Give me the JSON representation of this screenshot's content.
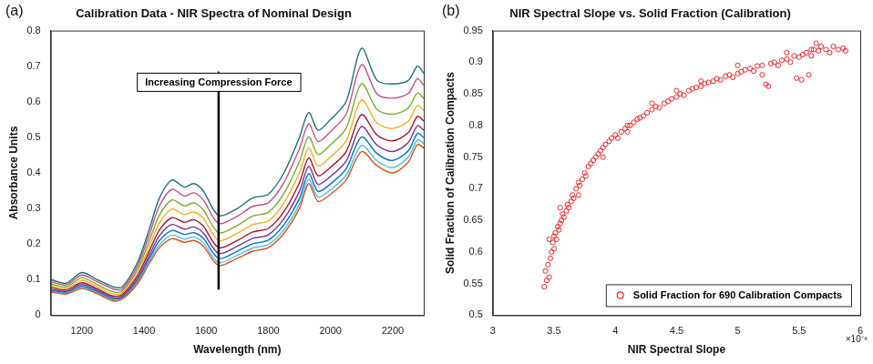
{
  "chart_data": [
    {
      "type": "line",
      "panel_label": "(a)",
      "title": "Calibration Data - NIR Spectra of Nominal Design",
      "x_label": "Wavelength (nm)",
      "y_label": "Absorbance Units",
      "annotations": [
        {
          "text": "Increasing Compression Force"
        }
      ],
      "xlim": [
        1100,
        2300
      ],
      "xticks": [
        1200,
        1400,
        1600,
        1800,
        2000,
        2200
      ],
      "ylim": [
        0,
        0.8
      ],
      "yticks": [
        0,
        0.1,
        0.2,
        0.3,
        0.4,
        0.5,
        0.6,
        0.7,
        0.8
      ],
      "grid": false,
      "line_style": "solid",
      "x": [
        1100,
        1150,
        1200,
        1250,
        1300,
        1330,
        1380,
        1420,
        1450,
        1490,
        1530,
        1560,
        1590,
        1640,
        1700,
        1750,
        1800,
        1850,
        1900,
        1930,
        1960,
        2000,
        2050,
        2100,
        2150,
        2200,
        2250,
        2280,
        2300
      ],
      "series": [
        {
          "color": "#d95319",
          "values": [
            0.065,
            0.06,
            0.075,
            0.06,
            0.04,
            0.045,
            0.09,
            0.15,
            0.19,
            0.215,
            0.205,
            0.21,
            0.195,
            0.14,
            0.16,
            0.18,
            0.19,
            0.23,
            0.3,
            0.37,
            0.32,
            0.34,
            0.38,
            0.46,
            0.42,
            0.4,
            0.43,
            0.48,
            0.47
          ]
        },
        {
          "color": "#4dbeee",
          "values": [
            0.067,
            0.062,
            0.078,
            0.062,
            0.042,
            0.047,
            0.094,
            0.156,
            0.198,
            0.225,
            0.214,
            0.22,
            0.204,
            0.148,
            0.168,
            0.189,
            0.199,
            0.24,
            0.312,
            0.382,
            0.332,
            0.353,
            0.393,
            0.477,
            0.434,
            0.415,
            0.444,
            0.493,
            0.483
          ]
        },
        {
          "color": "#0072bd",
          "values": [
            0.07,
            0.064,
            0.081,
            0.066,
            0.046,
            0.05,
            0.098,
            0.164,
            0.21,
            0.238,
            0.227,
            0.232,
            0.217,
            0.16,
            0.18,
            0.201,
            0.211,
            0.254,
            0.328,
            0.398,
            0.348,
            0.369,
            0.411,
            0.501,
            0.454,
            0.435,
            0.462,
            0.511,
            0.499
          ]
        },
        {
          "color": "#7e2f8e",
          "values": [
            0.073,
            0.067,
            0.086,
            0.07,
            0.05,
            0.053,
            0.104,
            0.174,
            0.224,
            0.255,
            0.242,
            0.248,
            0.232,
            0.174,
            0.194,
            0.216,
            0.226,
            0.271,
            0.348,
            0.418,
            0.368,
            0.39,
            0.433,
            0.53,
            0.478,
            0.46,
            0.485,
            0.533,
            0.52
          ]
        },
        {
          "color": "#a2142f",
          "values": [
            0.078,
            0.071,
            0.091,
            0.074,
            0.054,
            0.058,
            0.112,
            0.186,
            0.24,
            0.274,
            0.261,
            0.268,
            0.251,
            0.19,
            0.21,
            0.234,
            0.244,
            0.291,
            0.372,
            0.442,
            0.392,
            0.416,
            0.459,
            0.564,
            0.506,
            0.49,
            0.513,
            0.559,
            0.546
          ]
        },
        {
          "color": "#edb120",
          "values": [
            0.083,
            0.075,
            0.098,
            0.08,
            0.06,
            0.063,
            0.12,
            0.2,
            0.26,
            0.298,
            0.283,
            0.29,
            0.273,
            0.21,
            0.23,
            0.255,
            0.265,
            0.315,
            0.4,
            0.47,
            0.42,
            0.445,
            0.49,
            0.605,
            0.54,
            0.525,
            0.545,
            0.59,
            0.575
          ]
        },
        {
          "color": "#77ac30",
          "values": [
            0.088,
            0.08,
            0.105,
            0.086,
            0.066,
            0.068,
            0.13,
            0.216,
            0.282,
            0.324,
            0.307,
            0.316,
            0.297,
            0.232,
            0.252,
            0.279,
            0.289,
            0.342,
            0.432,
            0.502,
            0.452,
            0.479,
            0.525,
            0.651,
            0.578,
            0.565,
            0.582,
            0.625,
            0.609
          ]
        },
        {
          "color": "#c0508a",
          "values": [
            0.094,
            0.085,
            0.113,
            0.094,
            0.074,
            0.074,
            0.14,
            0.234,
            0.308,
            0.354,
            0.335,
            0.344,
            0.325,
            0.258,
            0.278,
            0.306,
            0.316,
            0.373,
            0.468,
            0.538,
            0.488,
            0.516,
            0.565,
            0.704,
            0.622,
            0.61,
            0.623,
            0.665,
            0.646
          ]
        },
        {
          "color": "#1f6f78",
          "values": [
            0.1,
            0.09,
            0.12,
            0.1,
            0.08,
            0.08,
            0.15,
            0.25,
            0.33,
            0.38,
            0.36,
            0.37,
            0.35,
            0.28,
            0.3,
            0.33,
            0.34,
            0.4,
            0.5,
            0.57,
            0.52,
            0.55,
            0.6,
            0.75,
            0.66,
            0.65,
            0.66,
            0.7,
            0.68
          ]
        }
      ]
    },
    {
      "type": "scatter",
      "panel_label": "(b)",
      "title": "NIR Spectral Slope vs. Solid Fraction (Calibration)",
      "x_label": "NIR Spectral Slope",
      "x_axis_multiplier": "×10⁻⁴",
      "y_label": "Solid Fraction of Calibration Compacts",
      "xlim": [
        3,
        6
      ],
      "xticks": [
        3,
        3.5,
        4,
        4.5,
        5,
        5.5,
        6
      ],
      "ylim": [
        0.5,
        0.95
      ],
      "yticks": [
        0.5,
        0.55,
        0.6,
        0.65,
        0.7,
        0.75,
        0.8,
        0.85,
        0.9,
        0.95
      ],
      "grid": false,
      "legend": "lower right",
      "series": [
        {
          "name": "Solid Fraction for 690 Calibration Compacts",
          "color": "#e8262a",
          "marker": "circle",
          "x": [
            3.42,
            3.44,
            3.43,
            3.45,
            3.46,
            3.47,
            3.48,
            3.49,
            3.5,
            3.5,
            3.51,
            3.52,
            3.53,
            3.54,
            3.55,
            3.56,
            3.57,
            3.58,
            3.6,
            3.61,
            3.62,
            3.64,
            3.65,
            3.66,
            3.68,
            3.7,
            3.71,
            3.73,
            3.75,
            3.76,
            3.78,
            3.8,
            3.82,
            3.84,
            3.86,
            3.88,
            3.9,
            3.92,
            3.95,
            3.97,
            4.0,
            4.02,
            4.05,
            4.08,
            4.1,
            4.12,
            4.15,
            4.18,
            4.2,
            4.23,
            4.26,
            4.3,
            4.33,
            4.36,
            4.4,
            4.43,
            4.46,
            4.5,
            4.53,
            4.56,
            4.6,
            4.63,
            4.66,
            4.7,
            4.73,
            4.76,
            4.8,
            4.83,
            4.86,
            4.9,
            4.93,
            4.96,
            5.0,
            5.03,
            5.06,
            5.1,
            5.13,
            5.16,
            5.2,
            5.23,
            5.25,
            5.27,
            5.3,
            5.33,
            5.36,
            5.4,
            5.43,
            5.46,
            5.48,
            5.5,
            5.52,
            5.53,
            5.56,
            5.58,
            5.6,
            5.62,
            5.64,
            5.66,
            5.68,
            5.72,
            5.75,
            5.78,
            5.82,
            5.86,
            5.88,
            3.46,
            3.55,
            3.7,
            3.9,
            4.1,
            4.3,
            4.5,
            4.7,
            5.0,
            5.2,
            5.4,
            5.6
          ],
          "values": [
            0.545,
            0.555,
            0.57,
            0.58,
            0.56,
            0.59,
            0.6,
            0.615,
            0.625,
            0.605,
            0.63,
            0.62,
            0.64,
            0.635,
            0.645,
            0.65,
            0.66,
            0.655,
            0.665,
            0.675,
            0.67,
            0.68,
            0.69,
            0.685,
            0.7,
            0.71,
            0.705,
            0.715,
            0.725,
            0.72,
            0.735,
            0.74,
            0.745,
            0.75,
            0.755,
            0.76,
            0.765,
            0.77,
            0.775,
            0.78,
            0.785,
            0.78,
            0.79,
            0.795,
            0.8,
            0.8,
            0.805,
            0.81,
            0.812,
            0.815,
            0.82,
            0.825,
            0.83,
            0.828,
            0.835,
            0.838,
            0.842,
            0.845,
            0.85,
            0.848,
            0.855,
            0.858,
            0.86,
            0.862,
            0.866,
            0.868,
            0.87,
            0.874,
            0.872,
            0.878,
            0.88,
            0.876,
            0.882,
            0.885,
            0.888,
            0.89,
            0.886,
            0.894,
            0.895,
            0.865,
            0.862,
            0.898,
            0.9,
            0.895,
            0.903,
            0.905,
            0.9,
            0.91,
            0.875,
            0.908,
            0.872,
            0.912,
            0.915,
            0.88,
            0.91,
            0.92,
            0.93,
            0.918,
            0.925,
            0.92,
            0.915,
            0.925,
            0.92,
            0.922,
            0.918,
            0.62,
            0.67,
            0.69,
            0.75,
            0.79,
            0.835,
            0.855,
            0.87,
            0.895,
            0.88,
            0.915,
            0.92
          ]
        }
      ]
    }
  ]
}
